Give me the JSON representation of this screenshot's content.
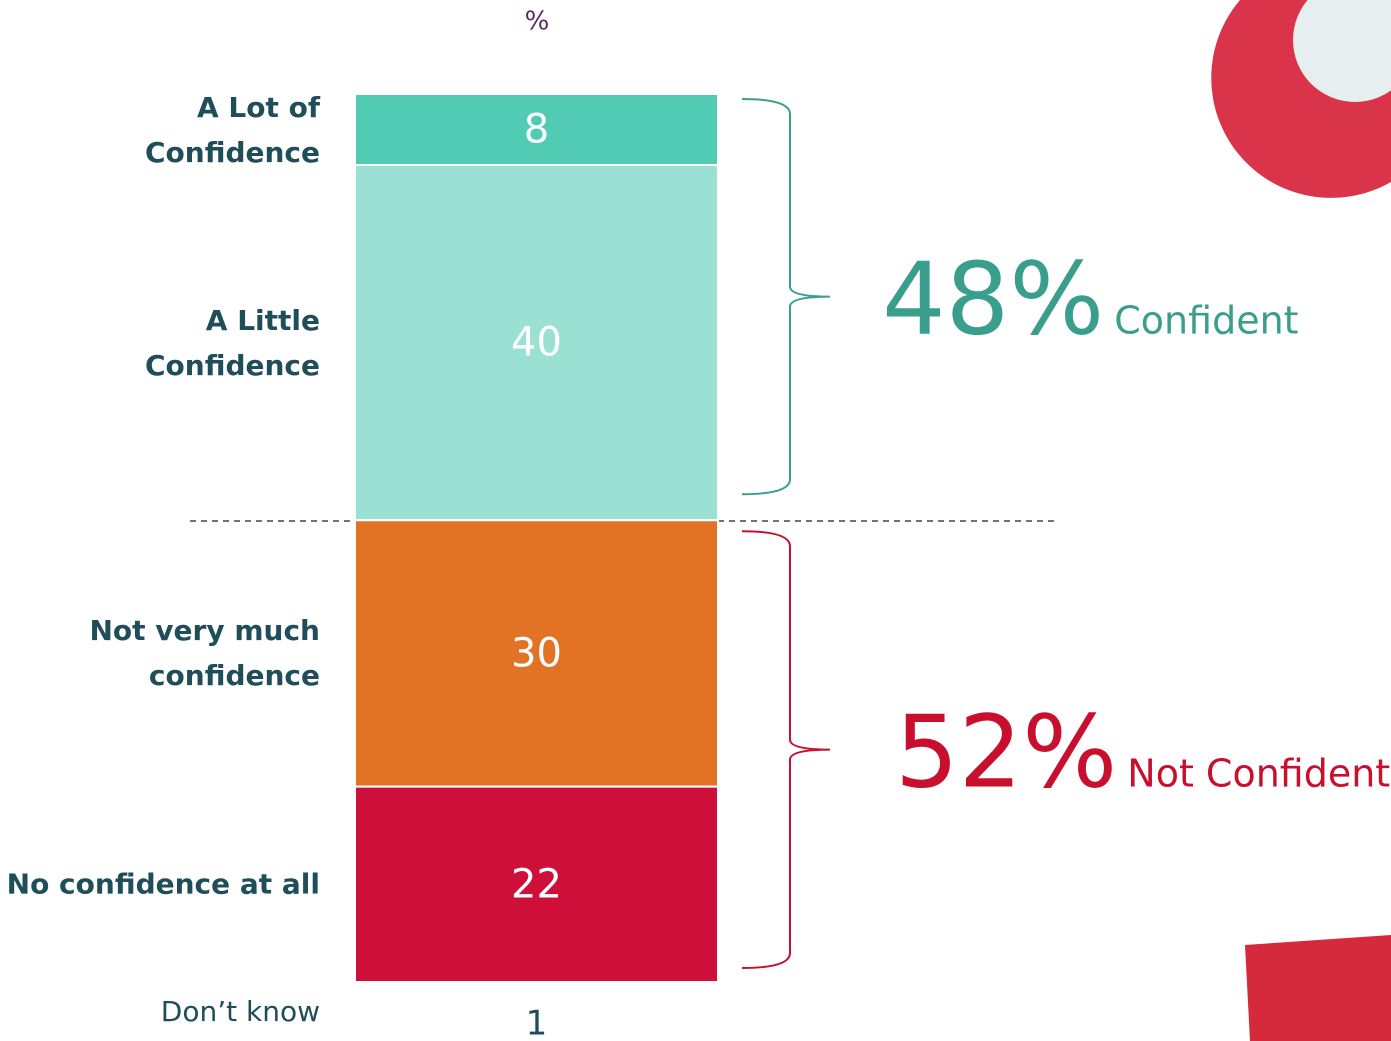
{
  "chart_data": {
    "type": "stacked_bar",
    "unit": "%",
    "categories": [
      "A Lot of Confidence",
      "A Little Confidence",
      "Not very much confidence",
      "No confidence at all"
    ],
    "values": [
      8,
      40,
      30,
      22
    ],
    "colors": [
      "#52cbb5",
      "#9ae1d4",
      "#e27325",
      "#ce0f3a"
    ],
    "ylim": [
      0,
      100
    ],
    "dont_know": {
      "label": "Don’t know",
      "value": 1
    },
    "groups": [
      {
        "value": 48,
        "value_label": "48%",
        "label": "Confident",
        "color": "#3a9e8c"
      },
      {
        "value": 52,
        "value_label": "52%",
        "label": "Not Confident",
        "color": "#c8102e"
      }
    ]
  }
}
